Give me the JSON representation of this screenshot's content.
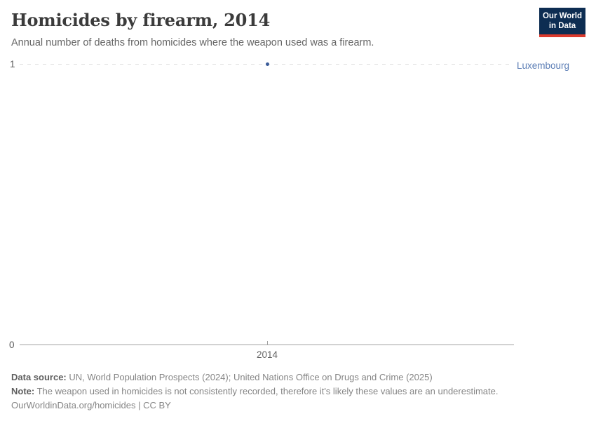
{
  "header": {
    "title": "Homicides by firearm, 2014",
    "subtitle": "Annual number of deaths from homicides where the weapon used was a firearm.",
    "logo": {
      "line1": "Our World",
      "line2": "in Data"
    }
  },
  "chart_data": {
    "type": "scatter",
    "x": [
      2014
    ],
    "series": [
      {
        "name": "Luxembourg",
        "values": [
          1
        ]
      }
    ],
    "title": "Homicides by firearm, 2014",
    "xlabel": "",
    "ylabel": "",
    "ylim": [
      0,
      1
    ],
    "x_axis": {
      "tick_label": "2014"
    },
    "y_axis": {
      "top_label": "1",
      "bottom_label": "0"
    },
    "grid": "horizontal dashed gridline at y=1 only",
    "legend_position": "entity label right of gridline"
  },
  "colors": {
    "point_color": "#3b5c99",
    "entity_color": "#5b7db5",
    "logo_bg": "#0d2d52",
    "logo_accent": "#dc3a2d"
  },
  "footer": {
    "datasource_label": "Data source:",
    "datasource_text": " UN, World Population Prospects (2024); United Nations Office on Drugs and Crime (2025)",
    "note_label": "Note:",
    "note_text": " The weapon used in homicides is not consistently recorded, therefore it's likely these values are an underestimate.",
    "license": "OurWorldinData.org/homicides | CC BY"
  }
}
